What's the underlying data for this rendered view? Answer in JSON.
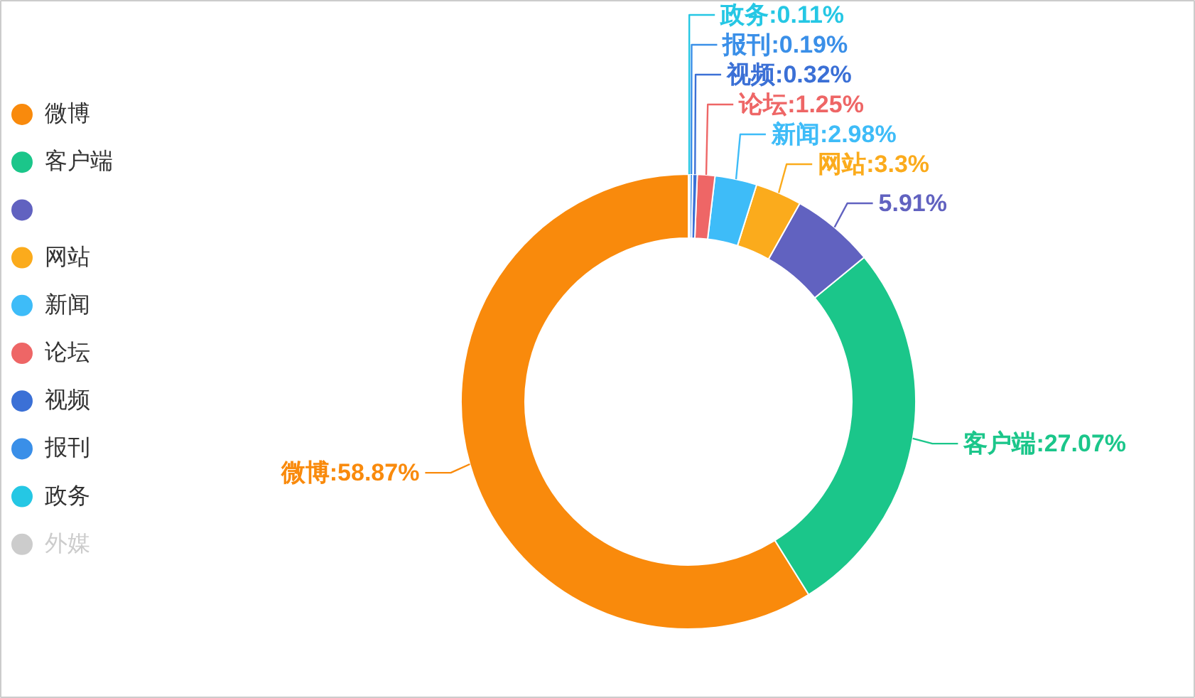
{
  "chart_data": {
    "type": "donut",
    "categories": [
      "微博",
      "客户端",
      null,
      "网站",
      "新闻",
      "论坛",
      "视频",
      "报刊",
      "政务",
      "外媒"
    ],
    "values": [
      58.87,
      27.07,
      5.91,
      3.3,
      2.98,
      1.25,
      0.32,
      0.19,
      0.11,
      null
    ],
    "colors": [
      "#f98a0c",
      "#1bc68a",
      "#6162c0",
      "#fbab1c",
      "#3ebcf8",
      "#ee6666",
      "#3b70d6",
      "#3a8fe8",
      "#25c7e4",
      "#cccccc"
    ],
    "value_labels": [
      "微博:58.87%",
      "客户端:27.07%",
      "5.91%",
      "网站:3.3%",
      "新闻:2.98%",
      "论坛:1.25%",
      "视频:0.32%",
      "报刊:0.19%",
      "政务:0.11%",
      null
    ],
    "legend": "left"
  }
}
